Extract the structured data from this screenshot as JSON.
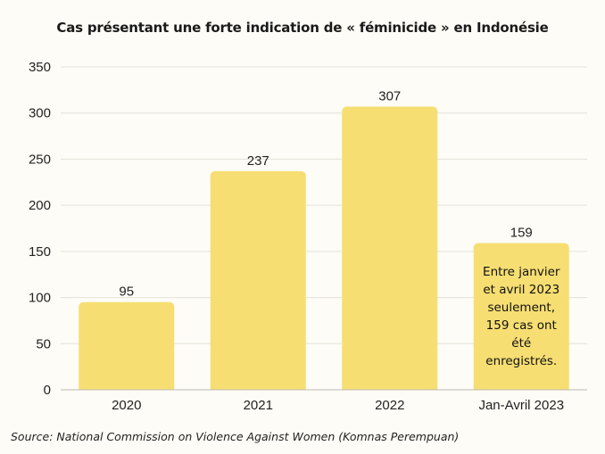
{
  "chart_data": {
    "type": "bar",
    "title": "Cas présentant une forte indication de « féminicide » en Indonésie",
    "categories": [
      "2020",
      "2021",
      "2022",
      "Jan-Avril 2023"
    ],
    "values": [
      95,
      237,
      307,
      159
    ],
    "data_labels": [
      "95",
      "237",
      "307",
      "159"
    ],
    "ylim": [
      0,
      350
    ],
    "yticks": [
      0,
      50,
      100,
      150,
      200,
      250,
      300,
      350
    ],
    "grid": true,
    "bar_color": "#f6de72",
    "annotation": {
      "category_index": 3,
      "text": "Entre janvier et avril 2023 seulement, 159 cas ont été enregistrés."
    },
    "source": "Source: National Commission on Violence Against Women (Komnas Perempuan)"
  }
}
